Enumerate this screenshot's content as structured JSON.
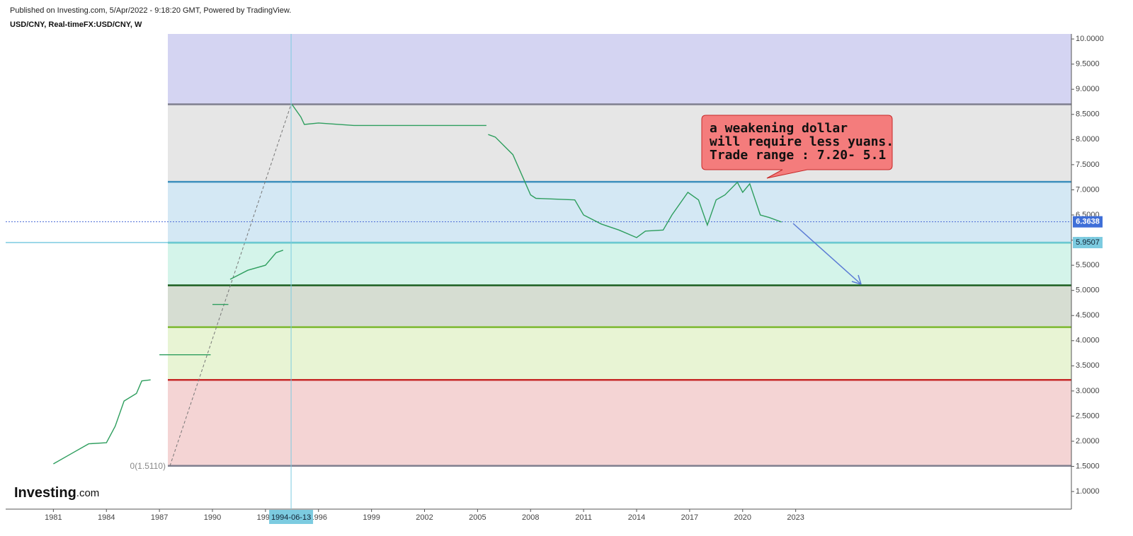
{
  "header": {
    "published": "Published on Investing.com, 5/Apr/2022 - 9:18:20 GMT, Powered by TradingView.",
    "symbol": "USD/CNY, Real-timeFX:USD/CNY, W"
  },
  "logo": {
    "brand": "Investing",
    "suffix": ".com"
  },
  "chart_data": {
    "type": "line",
    "xlim": [
      1978.3,
      2038.6
    ],
    "ylim": [
      0.65,
      10.1
    ],
    "xticks": [
      1981,
      1984,
      1987,
      1990,
      1993,
      1996,
      1999,
      2002,
      2005,
      2008,
      2011,
      2014,
      2017,
      2020,
      2023
    ],
    "yticks": [
      {
        "value": 1,
        "label": "1.0000"
      },
      {
        "value": 1.5,
        "label": "1.5000"
      },
      {
        "value": 2,
        "label": "2.0000"
      },
      {
        "value": 2.5,
        "label": "2.5000"
      },
      {
        "value": 3,
        "label": "3.0000"
      },
      {
        "value": 3.5,
        "label": "3.5000"
      },
      {
        "value": 4,
        "label": "4.0000"
      },
      {
        "value": 4.5,
        "label": "4.5000"
      },
      {
        "value": 5,
        "label": "5.0000"
      },
      {
        "value": 5.5,
        "label": "5.5000"
      },
      {
        "value": 6,
        "label": "6.0000"
      },
      {
        "value": 6.5,
        "label": "6.5000"
      },
      {
        "value": 7,
        "label": "7.0000"
      },
      {
        "value": 7.5,
        "label": "7.5000"
      },
      {
        "value": 8,
        "label": "8.0000"
      },
      {
        "value": 8.5,
        "label": "8.5000"
      },
      {
        "value": 9,
        "label": "9.0000"
      },
      {
        "value": 9.5,
        "label": "9.5000"
      },
      {
        "value": 10,
        "label": "10.0000"
      }
    ],
    "series": [
      {
        "name": "USD/CNY",
        "color": "#2e9e5e",
        "x": [
          1981,
          1982,
          1983,
          1984,
          1984.5,
          1985,
          1985.7,
          1986,
          1986.5,
          null,
          1987.0,
          1989.9,
          null,
          1990,
          1990.9,
          null,
          1991,
          1992,
          1993,
          1993.6,
          1994.0,
          null,
          1994.5,
          1995,
          1995.2,
          1996,
          1998,
          2005.5,
          null,
          2005.6,
          2006,
          2007,
          2008,
          2008.3,
          2010.5,
          2011,
          2012,
          2013,
          2014,
          2014.5,
          2015.5,
          2016,
          2016.9,
          2017.5,
          2018,
          2018.5,
          2019,
          2019.7,
          2020,
          2020.4,
          2021,
          2021.5,
          2022.2
        ],
        "values": [
          1.55,
          1.75,
          1.95,
          1.97,
          2.3,
          2.8,
          2.95,
          3.2,
          3.22,
          null,
          3.72,
          3.72,
          null,
          4.72,
          4.72,
          null,
          5.22,
          5.4,
          5.5,
          5.75,
          5.8,
          null,
          8.7,
          8.45,
          8.3,
          8.33,
          8.28,
          8.28,
          null,
          8.1,
          8.05,
          7.7,
          6.9,
          6.83,
          6.8,
          6.5,
          6.32,
          6.2,
          6.05,
          6.18,
          6.2,
          6.5,
          6.95,
          6.8,
          6.3,
          6.8,
          6.9,
          7.15,
          6.95,
          7.12,
          6.5,
          6.45,
          6.36
        ]
      }
    ],
    "fib_levels": [
      {
        "value": 8.7,
        "color": "#7f7f8f",
        "fill": "#e6e6e6"
      },
      {
        "value": 7.16,
        "color": "#3d8fbd",
        "fill": "#d4e8f4"
      },
      {
        "value": 5.95,
        "color": "#3bbfad",
        "fill": "#d4f4ea"
      },
      {
        "value": 5.1,
        "color": "#1b5e20",
        "fill": "#d6ddd2"
      },
      {
        "value": 4.27,
        "color": "#7cb82f",
        "fill": "#e8f4d4"
      },
      {
        "value": 3.22,
        "color": "#c62828",
        "fill": "#f4d4d4"
      },
      {
        "value": 1.511,
        "color": "#7f7f8f",
        "label": "0(1.5110)"
      }
    ],
    "top_fill": "#d4d4f2",
    "current_price": 6.3638,
    "marked_price": 5.9507,
    "crosshair_date": {
      "value": 1994.45,
      "label": "1994-06-13"
    },
    "annotation": [
      "a weakening dollar",
      "will require less yuans.",
      "Trade range : 7.20- 5.1"
    ]
  }
}
